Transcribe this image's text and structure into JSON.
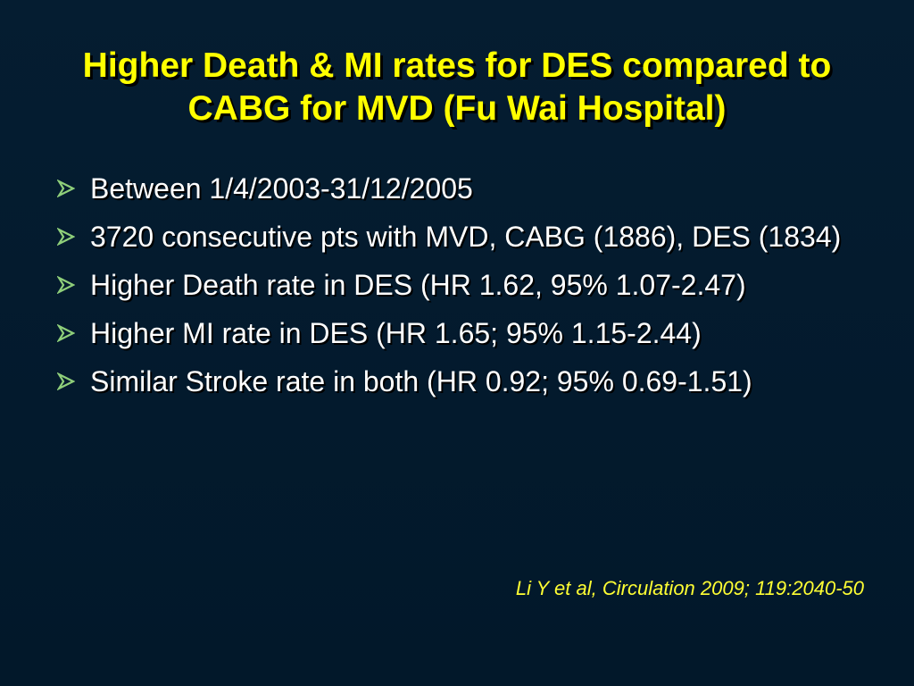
{
  "slide": {
    "title_line1": "Higher Death & MI rates for DES compared to",
    "title_line2": "CABG for MVD (Fu Wai Hospital)",
    "bullets": [
      "Between 1/4/2003-31/12/2005",
      "3720 consecutive pts with MVD, CABG (1886), DES (1834)",
      "Higher Death rate in DES (HR 1.62, 95% 1.07-2.47)",
      "Higher MI rate in DES (HR 1.65; 95% 1.15-2.44)",
      "Similar Stroke rate in both (HR 0.92; 95% 0.69-1.51)"
    ],
    "bullet_icon": "arrowhead-bullet-icon",
    "citation": "Li Y et al, Circulation 2009; 119:2040-50",
    "colors": {
      "background": "#03192c",
      "title": "#ffff00",
      "body_text": "#ffffff",
      "bullet_icon": "#8fcf7a",
      "citation": "#ffff33"
    }
  }
}
